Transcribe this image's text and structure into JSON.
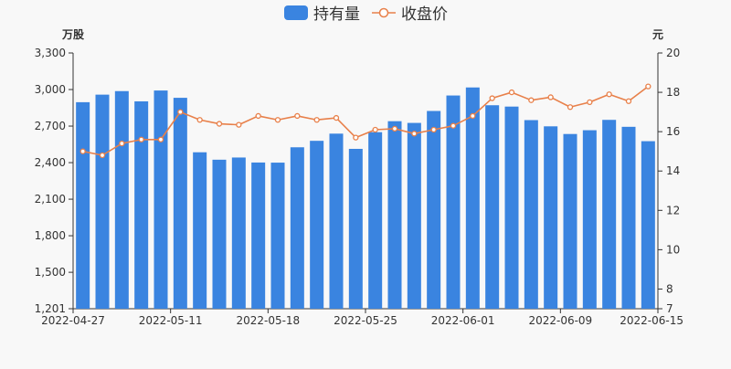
{
  "chart_data": {
    "type": "bar+line",
    "left_axis_unit": "万股",
    "right_axis_unit": "元",
    "left_ylim": [
      1201,
      3300
    ],
    "left_ticks": [
      "1,201",
      "1,500",
      "1,800",
      "2,100",
      "2,400",
      "2,700",
      "3,000",
      "3,300"
    ],
    "right_ylim": [
      7,
      20
    ],
    "right_ticks": [
      "7",
      "8",
      "10",
      "12",
      "14",
      "16",
      "18",
      "20"
    ],
    "x_tick_labels": [
      "2022-04-27",
      "2022-05-11",
      "2022-05-18",
      "2022-05-25",
      "2022-06-01",
      "2022-06-09",
      "2022-06-15"
    ],
    "legend": {
      "bar": "持有量",
      "line": "收盘价"
    },
    "colors": {
      "bar": "#3a84e0",
      "line": "#e8804a"
    },
    "series": [
      {
        "name": "持有量",
        "kind": "bar",
        "values": [
          2896,
          2958,
          2987,
          2903,
          2992,
          2932,
          2485,
          2424,
          2442,
          2401,
          2400,
          2526,
          2579,
          2638,
          2513,
          2650,
          2740,
          2726,
          2824,
          2951,
          3017,
          2871,
          2860,
          2749,
          2698,
          2635,
          2666,
          2751,
          2694,
          2576
        ]
      },
      {
        "name": "收盘价",
        "kind": "line",
        "values": [
          15.0,
          14.8,
          15.4,
          15.6,
          15.6,
          17.0,
          16.6,
          16.4,
          16.35,
          16.8,
          16.6,
          16.8,
          16.6,
          16.7,
          15.7,
          16.1,
          16.15,
          15.9,
          16.1,
          16.3,
          16.8,
          17.7,
          18.0,
          17.6,
          17.75,
          17.25,
          17.5,
          17.9,
          17.55,
          18.3
        ]
      }
    ]
  }
}
